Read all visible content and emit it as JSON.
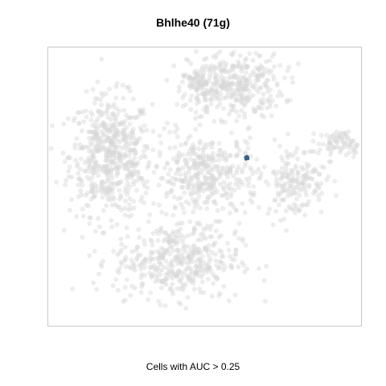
{
  "chart_data": {
    "type": "scatter",
    "title": "Bhlhe40 (71g)",
    "xlabel": "Cells with AUC > 0.25",
    "ylabel": "",
    "axes_visible": false,
    "grid": false,
    "legend": "none",
    "colors": {
      "background_cells": "#d8d8d8",
      "highlighted_cells": "#3b5f82",
      "frame": "#c8c8c8"
    },
    "clusters": [
      {
        "name": "left",
        "cx": -2.6,
        "cy": 1.0,
        "sx": 0.62,
        "sy": 0.95,
        "n": 560
      },
      {
        "name": "top-middle",
        "cx": 0.1,
        "cy": 3.2,
        "sx": 0.3,
        "sy": 0.35,
        "n": 90
      },
      {
        "name": "top-right",
        "cx": 1.2,
        "cy": 3.3,
        "sx": 0.72,
        "sy": 0.55,
        "n": 330
      },
      {
        "name": "center",
        "cx": 0.3,
        "cy": 0.3,
        "sx": 0.8,
        "sy": 0.7,
        "n": 400
      },
      {
        "name": "bottom",
        "cx": -0.6,
        "cy": -2.4,
        "sx": 0.95,
        "sy": 0.6,
        "n": 420
      },
      {
        "name": "right",
        "cx": 3.0,
        "cy": 0.2,
        "sx": 0.45,
        "sy": 0.6,
        "n": 170
      },
      {
        "name": "far-right",
        "cx": 4.4,
        "cy": 1.4,
        "sx": 0.35,
        "sy": 0.2,
        "n": 80
      }
    ],
    "highlighted_points": [
      {
        "x": 1.52,
        "y": 0.92
      },
      {
        "x": 1.55,
        "y": 0.95
      },
      {
        "x": 1.5,
        "y": 0.89
      },
      {
        "x": 1.56,
        "y": 0.9
      },
      {
        "x": 1.53,
        "y": 0.97
      },
      {
        "x": 1.49,
        "y": 0.94
      }
    ],
    "xlim": [
      -4.5,
      5.0
    ],
    "ylim": [
      -4.5,
      4.5
    ]
  }
}
